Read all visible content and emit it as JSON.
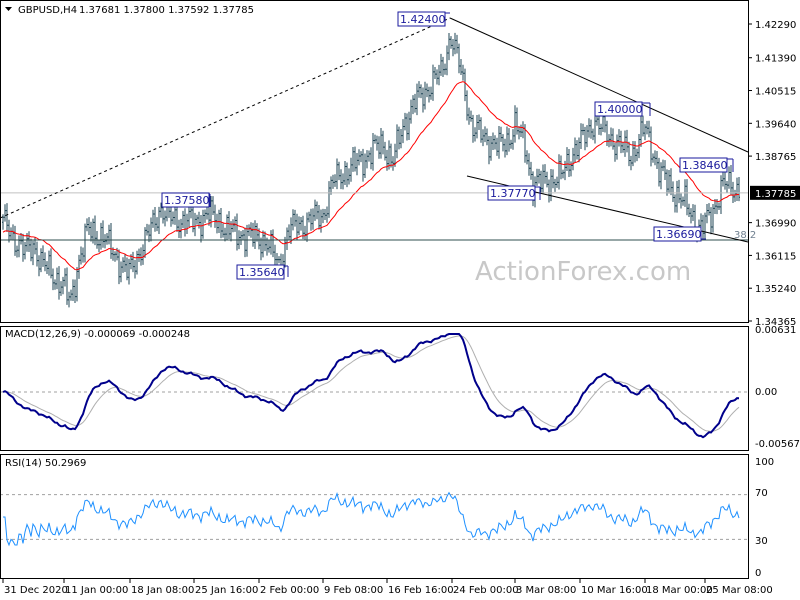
{
  "header": {
    "symbol": "GBPUSD,H4",
    "ohlc": "1.37681 1.37800 1.37592 1.37785",
    "menu_icon": "triangle-down-icon"
  },
  "watermark": "ActionForex.com",
  "colors": {
    "bars": "#1f4455",
    "ma": "#ff0000",
    "macd": "#00008b",
    "signal": "#b0b0b0",
    "rsi": "#1e90ff",
    "label": "#1a1a9c",
    "price_tag_bg": "#000000"
  },
  "chart_data": [
    {
      "type": "ohlc",
      "title": "GBPUSD,H4",
      "ylim": [
        1.34365,
        1.4229
      ],
      "yticks": [
        "1.42290",
        "1.41390",
        "1.40515",
        "1.39640",
        "1.38765",
        "1.37785",
        "1.36990",
        "1.36115",
        "1.35240",
        "1.34365"
      ],
      "current_price": "1.37785",
      "xticks": [
        "31 Dec 2020",
        "11 Jan 00:00",
        "18 Jan 08:00",
        "25 Jan 16:00",
        "2 Feb 00:00",
        "9 Feb 08:00",
        "16 Feb 16:00",
        "24 Feb 00:00",
        "3 Mar 08:00",
        "10 Mar 16:00",
        "18 Mar 00:00",
        "25 Mar 08:00"
      ],
      "close_approx": [
        [
          "2020-12-31T00",
          1.37
        ],
        [
          "2021-01-04T00",
          1.362
        ],
        [
          "2021-01-05T12",
          1.364
        ],
        [
          "2021-01-07T00",
          1.359
        ],
        [
          "2021-01-11T00",
          1.353
        ],
        [
          "2021-01-11T16",
          1.348
        ],
        [
          "2021-01-12T16",
          1.36
        ],
        [
          "2021-01-13T16",
          1.368
        ],
        [
          "2021-01-15T08",
          1.366
        ],
        [
          "2021-01-18T04",
          1.356
        ],
        [
          "2021-01-19T04",
          1.361
        ],
        [
          "2021-01-20T12",
          1.367
        ],
        [
          "2021-01-21T20",
          1.374
        ],
        [
          "2021-01-22T20",
          1.371
        ],
        [
          "2021-01-25T16",
          1.37
        ],
        [
          "2021-01-27T04",
          1.372
        ],
        [
          "2021-01-28T20",
          1.37
        ],
        [
          "2021-01-29T04",
          1.368
        ],
        [
          "2021-02-02T20",
          1.365
        ],
        [
          "2021-02-04T08",
          1.358
        ],
        [
          "2021-02-05T08",
          1.368
        ],
        [
          "2021-02-09T08",
          1.372
        ],
        [
          "2021-02-10T08",
          1.38
        ],
        [
          "2021-02-11T12",
          1.383
        ],
        [
          "2021-02-12T20",
          1.385
        ],
        [
          "2021-02-16T04",
          1.391
        ],
        [
          "2021-02-17T08",
          1.386
        ],
        [
          "2021-02-18T12",
          1.396
        ],
        [
          "2021-02-19T20",
          1.402
        ],
        [
          "2021-02-22T20",
          1.41
        ],
        [
          "2021-02-23T20",
          1.42
        ],
        [
          "2021-02-24T20",
          1.412
        ],
        [
          "2021-02-25T12",
          1.405
        ],
        [
          "2021-02-26T08",
          1.395
        ],
        [
          "2021-03-01T12",
          1.39
        ],
        [
          "2021-03-02T12",
          1.392
        ],
        [
          "2021-03-03T08",
          1.396
        ],
        [
          "2021-03-04T12",
          1.39
        ],
        [
          "2021-03-05T08",
          1.38
        ],
        [
          "2021-03-08T12",
          1.382
        ],
        [
          "2021-03-09T16",
          1.388
        ],
        [
          "2021-03-11T00",
          1.392
        ],
        [
          "2021-03-12T04",
          1.397
        ],
        [
          "2021-03-15T08",
          1.39
        ],
        [
          "2021-03-16T12",
          1.388
        ],
        [
          "2021-03-18T00",
          1.395
        ],
        [
          "2021-03-18T20",
          1.39
        ],
        [
          "2021-03-19T20",
          1.383
        ],
        [
          "2021-03-22T20",
          1.375
        ],
        [
          "2021-03-24T20",
          1.368
        ],
        [
          "2021-03-25T20",
          1.372
        ],
        [
          "2021-03-26T20",
          1.38
        ],
        [
          "2021-03-29T12",
          1.378
        ],
        [
          "2021-03-29T20",
          1.3778
        ]
      ],
      "annotations": [
        {
          "text": "1.42400",
          "price": 1.424
        },
        {
          "text": "1.37580",
          "price": 1.3758
        },
        {
          "text": "1.35640",
          "price": 1.3564
        },
        {
          "text": "1.37770",
          "price": 1.3777
        },
        {
          "text": "1.40000",
          "price": 1.4
        },
        {
          "text": "1.38460",
          "price": 1.3846
        },
        {
          "text": "1.36690",
          "price": 1.3669
        }
      ],
      "fib_label": "38.2",
      "series": [
        {
          "name": "",
          "type": "moving-average"
        }
      ]
    },
    {
      "type": "line",
      "title": "MACD(12,26,9) -0.000069 -0.000248",
      "ylim": [
        -0.005671,
        0.00631
      ],
      "yticks": [
        "0.00631",
        "0.00",
        "-0.005671"
      ]
    },
    {
      "type": "line",
      "title": "RSI(14) 50.2969",
      "ylim": [
        0,
        100
      ],
      "yticks": [
        "100",
        "70",
        "30",
        "0"
      ],
      "levels": [
        70,
        30
      ]
    }
  ]
}
